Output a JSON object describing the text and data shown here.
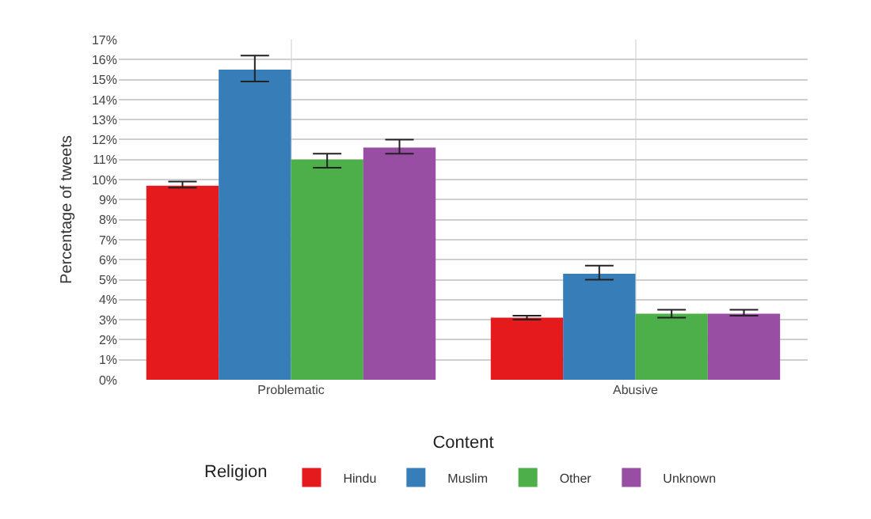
{
  "chart_data": {
    "type": "bar",
    "xlabel": "Content",
    "ylabel": "Percentage of tweets",
    "legend_title": "Religion",
    "categories": [
      "Problematic",
      "Abusive"
    ],
    "series": [
      {
        "name": "Hindu",
        "color": "#e41a1c",
        "values": [
          9.7,
          3.1
        ],
        "errors": [
          [
            9.6,
            9.9
          ],
          [
            3.0,
            3.2
          ]
        ]
      },
      {
        "name": "Muslim",
        "color": "#377eb8",
        "values": [
          15.5,
          5.3
        ],
        "errors": [
          [
            14.9,
            16.2
          ],
          [
            5.0,
            5.7
          ]
        ]
      },
      {
        "name": "Other",
        "color": "#4daf4a",
        "values": [
          11.0,
          3.3
        ],
        "errors": [
          [
            10.6,
            11.3
          ],
          [
            3.1,
            3.5
          ]
        ]
      },
      {
        "name": "Unknown",
        "color": "#984ea3",
        "values": [
          11.6,
          3.3
        ],
        "errors": [
          [
            11.3,
            12.0
          ],
          [
            3.2,
            3.5
          ]
        ]
      }
    ],
    "ylim": [
      0,
      17
    ],
    "yticks": [
      {
        "value": 0,
        "label": "0%"
      },
      {
        "value": 1,
        "label": "1%"
      },
      {
        "value": 2,
        "label": "2%"
      },
      {
        "value": 3,
        "label": "3%"
      },
      {
        "value": 4,
        "label": "4%"
      },
      {
        "value": 5,
        "label": "5%"
      },
      {
        "value": 6,
        "label": "6%"
      },
      {
        "value": 7,
        "label": "7%"
      },
      {
        "value": 8,
        "label": "8%"
      },
      {
        "value": 9,
        "label": "9%"
      },
      {
        "value": 10,
        "label": "10%"
      },
      {
        "value": 11,
        "label": "11%"
      },
      {
        "value": 12,
        "label": "12%"
      },
      {
        "value": 13,
        "label": "13%"
      },
      {
        "value": 14,
        "label": "14%"
      },
      {
        "value": 15,
        "label": "15%"
      },
      {
        "value": 16,
        "label": "16%"
      },
      {
        "value": 17,
        "label": "17%"
      }
    ],
    "grid": true,
    "legend": "bottom"
  }
}
